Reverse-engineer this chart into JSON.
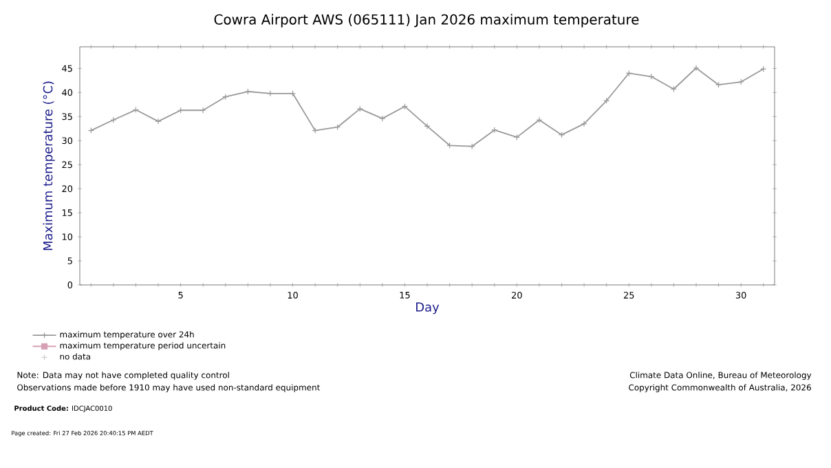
{
  "chart_data": {
    "type": "line",
    "title": "Cowra Airport AWS (065111) Jan 2026 maximum temperature",
    "xlabel": "Day",
    "ylabel": "Maximum temperature (°C)",
    "x": [
      1,
      2,
      3,
      4,
      5,
      6,
      7,
      8,
      9,
      10,
      11,
      12,
      13,
      14,
      15,
      16,
      17,
      18,
      19,
      20,
      21,
      22,
      23,
      24,
      25,
      26,
      27,
      28,
      29,
      30,
      31
    ],
    "series": [
      {
        "name": "maximum temperature over 24h",
        "color": "#999999",
        "marker": "cross",
        "values": [
          32.1,
          34.3,
          36.4,
          34.0,
          36.3,
          36.3,
          39.1,
          40.2,
          39.8,
          39.8,
          32.1,
          32.8,
          36.6,
          34.6,
          37.1,
          33.0,
          29.0,
          28.8,
          32.2,
          30.7,
          34.3,
          31.2,
          33.5,
          38.3,
          44.0,
          43.3,
          40.7,
          45.1,
          41.6,
          42.2,
          44.9
        ]
      },
      {
        "name": "maximum temperature period uncertain",
        "color": "#d8a0b4",
        "marker": "square",
        "values": [
          null,
          null,
          null,
          null,
          null,
          null,
          null,
          null,
          null,
          null,
          null,
          null,
          null,
          null,
          null,
          null,
          null,
          null,
          null,
          null,
          null,
          null,
          null,
          null,
          null,
          null,
          null,
          null,
          null,
          null,
          null
        ]
      },
      {
        "name": "no data",
        "type": "scatter",
        "color": "#cccccc",
        "marker": "cross",
        "values": [
          null,
          null,
          null,
          null,
          null,
          null,
          null,
          null,
          null,
          null,
          null,
          null,
          null,
          null,
          null,
          null,
          null,
          null,
          null,
          null,
          null,
          null,
          null,
          null,
          null,
          null,
          null,
          null,
          null,
          null,
          null
        ]
      }
    ],
    "xlim": [
      0.5,
      31.5
    ],
    "ylim": [
      0,
      49.5
    ],
    "xticks": [
      {
        "value": 1,
        "label": null
      },
      {
        "value": 2,
        "label": null
      },
      {
        "value": 3,
        "label": null
      },
      {
        "value": 4,
        "label": null
      },
      5,
      {
        "value": 6,
        "label": null
      },
      {
        "value": 7,
        "label": null
      },
      {
        "value": 8,
        "label": null
      },
      {
        "value": 9,
        "label": null
      },
      10,
      {
        "value": 11,
        "label": null
      },
      {
        "value": 12,
        "label": null
      },
      {
        "value": 13,
        "label": null
      },
      {
        "value": 14,
        "label": null
      },
      15,
      {
        "value": 16,
        "label": null
      },
      {
        "value": 17,
        "label": null
      },
      {
        "value": 18,
        "label": null
      },
      {
        "value": 19,
        "label": null
      },
      20,
      {
        "value": 21,
        "label": null
      },
      {
        "value": 22,
        "label": null
      },
      {
        "value": 23,
        "label": null
      },
      {
        "value": 24,
        "label": null
      },
      25,
      {
        "value": 26,
        "label": null
      },
      {
        "value": 27,
        "label": null
      },
      {
        "value": 28,
        "label": null
      },
      {
        "value": 29,
        "label": null
      },
      30,
      {
        "value": 31,
        "label": null
      }
    ],
    "yticks": [
      0,
      5,
      10,
      15,
      20,
      25,
      30,
      35,
      40,
      45
    ],
    "grid": false,
    "legend": "bottom left",
    "annotations": [
      "Note: Data may not have completed quality control",
      "Observations made before 1910 may have used non-standard equipment",
      "Climate Data Online, Bureau of Meteorology",
      "Copyright Commonwealth of Australia, 2026",
      "**Product Code:** IDCJAC0010",
      "Page created: Fri 27 Feb 2026 20:40:15 PM AEDT"
    ]
  }
}
